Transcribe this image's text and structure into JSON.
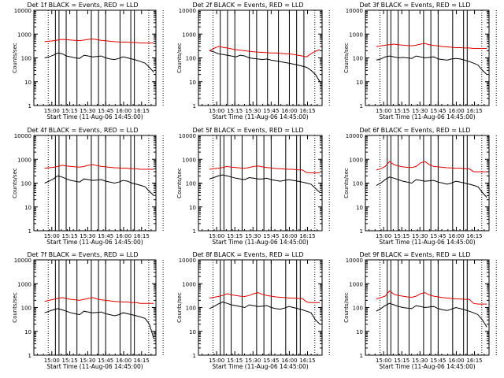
{
  "chart_data": [
    {
      "type": "line",
      "title": "Det 1f BLACK = Events, RED = LLD",
      "xlabel": "Start Time (11-Aug-06 14:45:00)",
      "ylabel": "Counts/sec",
      "x_tick_labels": [
        "15:00",
        "15:15",
        "15:30",
        "15:45",
        "16:00",
        "16:15"
      ],
      "y_tick_labels": [
        "1",
        "10",
        "100",
        "1000",
        "10000"
      ],
      "ylim": [
        1,
        10000
      ],
      "yscale": "log",
      "series": [
        {
          "name": "BLACK = Events",
          "color": "#000000",
          "y": [
            100,
            110,
            130,
            160,
            150,
            120,
            110,
            100,
            95,
            130,
            120,
            110,
            115,
            120,
            100,
            90,
            85,
            95,
            110,
            100,
            90,
            80,
            70,
            60,
            40,
            25
          ]
        },
        {
          "name": "RED = LLD",
          "color": "#e00000",
          "y": [
            480,
            500,
            520,
            560,
            600,
            580,
            560,
            540,
            530,
            560,
            600,
            620,
            580,
            540,
            520,
            500,
            480,
            470,
            460,
            460,
            440,
            440,
            420,
            420,
            420,
            420
          ]
        }
      ],
      "event_lines": [
        15.05,
        15.1,
        15.2,
        15.35,
        15.55,
        15.65,
        15.75,
        15.95,
        16.1,
        16.15
      ],
      "dotted_lines": [
        14.95,
        16.35,
        16.55
      ]
    },
    {
      "type": "line",
      "title": "Det 2f BLACK = Events, RED = LLD",
      "xlabel": "Start Time (11-Aug-06 14:45:00)",
      "ylabel": "Counts/sec",
      "x_tick_labels": [
        "15:00",
        "15:15",
        "15:30",
        "15:45",
        "16:00",
        "16:15"
      ],
      "y_tick_labels": [
        "1",
        "10",
        "100",
        "1000",
        "10000"
      ],
      "ylim": [
        1,
        10000
      ],
      "yscale": "log",
      "series": [
        {
          "name": "BLACK = Events",
          "color": "#000000",
          "y": [
            200,
            180,
            150,
            140,
            130,
            120,
            110,
            130,
            120,
            100,
            95,
            90,
            85,
            90,
            80,
            75,
            70,
            65,
            60,
            55,
            50,
            45,
            40,
            30,
            20,
            10
          ]
        },
        {
          "name": "RED = LLD",
          "color": "#e00000",
          "y": [
            200,
            250,
            300,
            280,
            260,
            240,
            220,
            210,
            200,
            190,
            180,
            175,
            170,
            165,
            160,
            160,
            155,
            150,
            150,
            140,
            130,
            120,
            110,
            150,
            190,
            220
          ]
        }
      ],
      "event_lines": [
        15.05,
        15.15,
        15.25,
        15.45,
        15.55,
        15.7,
        15.85,
        16.0,
        16.1,
        16.2
      ],
      "dotted_lines": [
        14.95,
        16.35,
        16.55
      ]
    },
    {
      "type": "line",
      "title": "Det 3f BLACK = Events, RED = LLD",
      "xlabel": "Start Time (11-Aug-06 14:45:00)",
      "ylabel": "Counts/sec",
      "x_tick_labels": [
        "15:00",
        "15:15",
        "15:30",
        "15:45",
        "16:00",
        "16:15"
      ],
      "y_tick_labels": [
        "1",
        "10",
        "100",
        "1000",
        "10000"
      ],
      "ylim": [
        1,
        10000
      ],
      "yscale": "log",
      "series": [
        {
          "name": "BLACK = Events",
          "color": "#000000",
          "y": [
            80,
            90,
            110,
            120,
            110,
            100,
            105,
            100,
            95,
            120,
            110,
            100,
            105,
            110,
            90,
            85,
            80,
            90,
            95,
            90,
            80,
            70,
            60,
            50,
            30,
            20
          ]
        },
        {
          "name": "RED = LLD",
          "color": "#e00000",
          "y": [
            300,
            320,
            340,
            360,
            380,
            360,
            340,
            330,
            320,
            340,
            380,
            400,
            360,
            330,
            320,
            300,
            290,
            280,
            270,
            270,
            260,
            260,
            250,
            250,
            250,
            250
          ]
        }
      ],
      "event_lines": [
        15.05,
        15.1,
        15.2,
        15.35,
        15.55,
        15.65,
        15.75,
        15.95,
        16.1,
        16.15
      ],
      "dotted_lines": [
        14.95,
        16.35,
        16.55
      ]
    },
    {
      "type": "line",
      "title": "Det 4f BLACK = Events, RED = LLD",
      "xlabel": "Start Time (11-Aug-06 14:45:00)",
      "ylabel": "Counts/sec",
      "x_tick_labels": [
        "15:00",
        "15:15",
        "15:30",
        "15:45",
        "16:00",
        "16:15"
      ],
      "y_tick_labels": [
        "1",
        "10",
        "100",
        "1000",
        "10000"
      ],
      "ylim": [
        1,
        10000
      ],
      "yscale": "log",
      "series": [
        {
          "name": "BLACK = Events",
          "color": "#000000",
          "y": [
            100,
            120,
            150,
            200,
            180,
            150,
            130,
            120,
            110,
            150,
            140,
            130,
            135,
            140,
            120,
            110,
            100,
            110,
            130,
            120,
            100,
            90,
            80,
            70,
            45,
            30
          ]
        },
        {
          "name": "RED = LLD",
          "color": "#e00000",
          "y": [
            420,
            440,
            460,
            500,
            560,
            520,
            500,
            480,
            470,
            500,
            560,
            600,
            540,
            500,
            480,
            460,
            440,
            430,
            420,
            420,
            400,
            400,
            380,
            380,
            380,
            380
          ]
        }
      ],
      "event_lines": [
        15.05,
        15.1,
        15.2,
        15.35,
        15.55,
        15.65,
        15.75,
        15.95,
        16.1,
        16.15
      ],
      "dotted_lines": [
        14.95,
        16.35,
        16.55
      ]
    },
    {
      "type": "line",
      "title": "Det 5f BLACK = Events, RED = LLD",
      "xlabel": "Start Time (11-Aug-06 14:45:00)",
      "ylabel": "Counts/sec",
      "x_tick_labels": [
        "15:00",
        "15:15",
        "15:30",
        "15:45",
        "16:00",
        "16:15"
      ],
      "y_tick_labels": [
        "1",
        "10",
        "100",
        "1000",
        "10000"
      ],
      "ylim": [
        1,
        10000
      ],
      "yscale": "log",
      "series": [
        {
          "name": "BLACK = Events",
          "color": "#000000",
          "y": [
            150,
            170,
            200,
            220,
            200,
            180,
            160,
            150,
            140,
            170,
            160,
            150,
            150,
            160,
            140,
            130,
            120,
            130,
            140,
            130,
            120,
            110,
            100,
            90,
            60,
            40
          ]
        },
        {
          "name": "RED = LLD",
          "color": "#e00000",
          "y": [
            380,
            400,
            420,
            450,
            500,
            470,
            450,
            430,
            420,
            450,
            500,
            520,
            480,
            450,
            430,
            410,
            400,
            390,
            380,
            380,
            360,
            360,
            280,
            270,
            270,
            270
          ]
        }
      ],
      "event_lines": [
        15.05,
        15.1,
        15.2,
        15.35,
        15.55,
        15.65,
        15.75,
        15.95,
        16.1,
        16.15
      ],
      "dotted_lines": [
        14.95,
        16.35,
        16.55
      ]
    },
    {
      "type": "line",
      "title": "Det 6f BLACK = Events, RED = LLD",
      "xlabel": "Start Time (11-Aug-06 14:45:00)",
      "ylabel": "Counts/sec",
      "x_tick_labels": [
        "15:00",
        "15:15",
        "15:30",
        "15:45",
        "16:00",
        "16:15"
      ],
      "y_tick_labels": [
        "1",
        "10",
        "100",
        "1000",
        "10000"
      ],
      "ylim": [
        1,
        10000
      ],
      "yscale": "log",
      "series": [
        {
          "name": "BLACK = Events",
          "color": "#000000",
          "y": [
            80,
            100,
            140,
            180,
            160,
            140,
            120,
            110,
            100,
            140,
            130,
            120,
            125,
            130,
            110,
            100,
            90,
            100,
            120,
            110,
            100,
            90,
            80,
            70,
            40,
            25
          ]
        },
        {
          "name": "RED = LLD",
          "color": "#e00000",
          "y": [
            350,
            400,
            500,
            800,
            600,
            520,
            480,
            460,
            450,
            500,
            700,
            800,
            600,
            500,
            480,
            460,
            440,
            430,
            420,
            420,
            400,
            400,
            300,
            300,
            300,
            300
          ]
        }
      ],
      "event_lines": [
        15.05,
        15.1,
        15.2,
        15.35,
        15.55,
        15.65,
        15.75,
        15.95,
        16.1,
        16.15
      ],
      "dotted_lines": [
        14.95,
        16.35,
        16.55
      ]
    },
    {
      "type": "line",
      "title": "Det 7f BLACK = Events, RED = LLD",
      "xlabel": "Start Time (11-Aug-06 14:45:00)",
      "ylabel": "Counts/sec",
      "x_tick_labels": [
        "15:00",
        "15:15",
        "15:30",
        "15:45",
        "16:00",
        "16:15"
      ],
      "y_tick_labels": [
        "1",
        "10",
        "100",
        "1000",
        "10000"
      ],
      "ylim": [
        1,
        10000
      ],
      "yscale": "log",
      "series": [
        {
          "name": "BLACK = Events",
          "color": "#000000",
          "y": [
            60,
            70,
            80,
            90,
            80,
            70,
            60,
            55,
            50,
            70,
            65,
            60,
            62,
            65,
            55,
            50,
            45,
            50,
            60,
            55,
            50,
            45,
            40,
            35,
            20,
            5
          ]
        },
        {
          "name": "RED = LLD",
          "color": "#e00000",
          "y": [
            180,
            200,
            220,
            240,
            260,
            240,
            220,
            210,
            200,
            220,
            240,
            260,
            230,
            210,
            200,
            190,
            180,
            175,
            170,
            170,
            160,
            160,
            150,
            150,
            150,
            150
          ]
        }
      ],
      "event_lines": [
        15.05,
        15.1,
        15.2,
        15.35,
        15.55,
        15.65,
        15.75,
        15.95,
        16.1,
        16.15
      ],
      "dotted_lines": [
        14.95,
        16.35,
        16.55
      ]
    },
    {
      "type": "line",
      "title": "Det 8f BLACK = Events, RED = LLD",
      "xlabel": "Start Time (11-Aug-06 14:45:00)",
      "ylabel": "Counts/sec",
      "x_tick_labels": [
        "15:00",
        "15:15",
        "15:30",
        "15:45",
        "16:00",
        "16:15"
      ],
      "y_tick_labels": [
        "1",
        "10",
        "100",
        "1000",
        "10000"
      ],
      "ylim": [
        1,
        10000
      ],
      "yscale": "log",
      "series": [
        {
          "name": "BLACK = Events",
          "color": "#000000",
          "y": [
            90,
            110,
            140,
            170,
            150,
            130,
            120,
            110,
            100,
            130,
            120,
            110,
            115,
            120,
            100,
            90,
            85,
            95,
            110,
            100,
            90,
            80,
            70,
            60,
            30,
            20
          ]
        },
        {
          "name": "RED = LLD",
          "color": "#e00000",
          "y": [
            250,
            270,
            290,
            320,
            380,
            340,
            320,
            300,
            290,
            320,
            380,
            420,
            360,
            320,
            300,
            280,
            270,
            260,
            250,
            250,
            240,
            240,
            170,
            160,
            160,
            160
          ]
        }
      ],
      "event_lines": [
        15.05,
        15.1,
        15.2,
        15.35,
        15.55,
        15.65,
        15.75,
        15.95,
        16.1,
        16.15
      ],
      "dotted_lines": [
        14.95,
        16.35,
        16.55
      ]
    },
    {
      "type": "line",
      "title": "Det 9f BLACK = Events, RED = LLD",
      "xlabel": "Start Time (11-Aug-06 14:45:00)",
      "ylabel": "Counts/sec",
      "x_tick_labels": [
        "15:00",
        "15:15",
        "15:30",
        "15:45",
        "16:00",
        "16:15"
      ],
      "y_tick_labels": [
        "1",
        "10",
        "100",
        "1000",
        "10000"
      ],
      "ylim": [
        1,
        10000
      ],
      "yscale": "log",
      "series": [
        {
          "name": "BLACK = Events",
          "color": "#000000",
          "y": [
            70,
            90,
            120,
            150,
            130,
            110,
            100,
            95,
            90,
            120,
            110,
            100,
            105,
            110,
            90,
            80,
            75,
            85,
            100,
            90,
            80,
            70,
            60,
            50,
            30,
            15
          ]
        },
        {
          "name": "RED = LLD",
          "color": "#e00000",
          "y": [
            230,
            260,
            300,
            500,
            360,
            320,
            300,
            280,
            270,
            300,
            380,
            420,
            340,
            300,
            280,
            260,
            250,
            240,
            230,
            230,
            220,
            220,
            150,
            140,
            140,
            140
          ]
        }
      ],
      "event_lines": [
        15.05,
        15.1,
        15.2,
        15.35,
        15.55,
        15.65,
        15.75,
        15.95,
        16.1,
        16.15
      ],
      "dotted_lines": [
        14.95,
        16.35,
        16.55
      ]
    }
  ]
}
